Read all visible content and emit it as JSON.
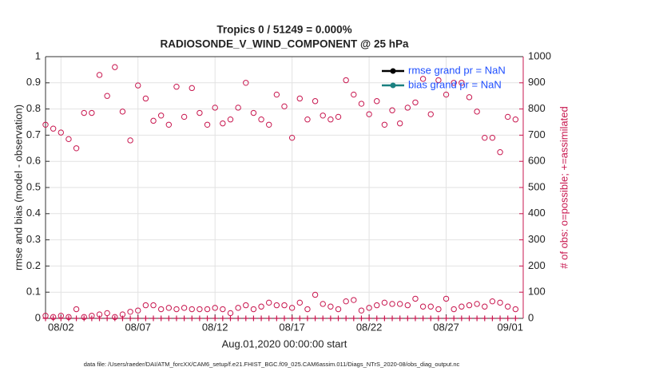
{
  "chart_data": {
    "type": "scatter",
    "title": "Tropics 0 / 51249 = 0.000%",
    "subtitle": "RADIOSONDE_V_WIND_COMPONENT @ 25 hPa",
    "x_label": "Aug.01,2020 00:00:00 start",
    "y_label": "rmse and bias (model - observation)",
    "y2_label": "# of obs: o=possible; +=assimilated",
    "footer": "data file: /Users/raeder/DAI/ATM_forcXX/CAM6_setup/f.e21.FHIST_BGC.f09_025.CAM6assim.011/Diags_NTrS_2020-08/obs_diag_output.nc",
    "xlim": [
      1,
      32
    ],
    "xticks": [
      {
        "value": 2,
        "label": "08/02"
      },
      {
        "value": 7,
        "label": "08/07"
      },
      {
        "value": 12,
        "label": "08/12"
      },
      {
        "value": 17,
        "label": "08/17"
      },
      {
        "value": 22,
        "label": "08/22"
      },
      {
        "value": 27,
        "label": "08/27"
      },
      {
        "value": 32,
        "label": "09/01"
      }
    ],
    "ylim": [
      0,
      1
    ],
    "yticks": [
      0,
      0.1,
      0.2,
      0.3,
      0.4,
      0.5,
      0.6,
      0.7,
      0.8,
      0.9,
      1
    ],
    "y2lim": [
      0,
      1000
    ],
    "y2ticks": [
      0,
      100,
      200,
      300,
      400,
      500,
      600,
      700,
      800,
      900,
      1000
    ],
    "y2_color": "#c8174f",
    "grid": true,
    "x": [
      1,
      1.5,
      2,
      2.5,
      3,
      3.5,
      4,
      4.5,
      5,
      5.5,
      6,
      6.5,
      7,
      7.5,
      8,
      8.5,
      9,
      9.5,
      10,
      10.5,
      11,
      11.5,
      12,
      12.5,
      13,
      13.5,
      14,
      14.5,
      15,
      15.5,
      16,
      16.5,
      17,
      17.5,
      18,
      18.5,
      19,
      19.5,
      20,
      20.5,
      21,
      21.5,
      22,
      22.5,
      23,
      23.5,
      24,
      24.5,
      25,
      25.5,
      26,
      26.5,
      27,
      27.5,
      28,
      28.5,
      29,
      29.5,
      30,
      30.5,
      31,
      31.5
    ],
    "series": [
      {
        "color": "#c8174f",
        "marker": "circle",
        "axis": "y2",
        "values": [
          740,
          725,
          710,
          685,
          650,
          785,
          785,
          930,
          850,
          960,
          790,
          680,
          890,
          840,
          755,
          775,
          740,
          885,
          770,
          880,
          785,
          740,
          805,
          745,
          760,
          805,
          900,
          785,
          760,
          740,
          855,
          810,
          690,
          840,
          760,
          830,
          775,
          760,
          770,
          910,
          855,
          820,
          780,
          830,
          740,
          795,
          745,
          805,
          825,
          915,
          780,
          910,
          855,
          900,
          900,
          845,
          790,
          690,
          690,
          635,
          770,
          760
        ]
      },
      {
        "color": "#c8174f",
        "marker": "circle",
        "axis": "y2",
        "values": [
          10,
          5,
          10,
          5,
          35,
          5,
          10,
          15,
          20,
          5,
          15,
          25,
          30,
          50,
          50,
          35,
          40,
          35,
          40,
          35,
          35,
          35,
          40,
          35,
          20,
          40,
          50,
          35,
          45,
          60,
          50,
          50,
          40,
          60,
          35,
          90,
          55,
          45,
          35,
          65,
          70,
          30,
          40,
          50,
          60,
          55,
          55,
          50,
          75,
          45,
          45,
          35,
          75,
          35,
          45,
          50,
          55,
          45,
          65,
          60,
          45,
          35
        ]
      },
      {
        "color": "#c8174f",
        "marker": "plus",
        "axis": "y2",
        "values": [
          0,
          0,
          0,
          0,
          0,
          0,
          0,
          0,
          0,
          0,
          0,
          0,
          0,
          0,
          0,
          0,
          0,
          0,
          0,
          0,
          0,
          0,
          0,
          0,
          0,
          0,
          0,
          0,
          0,
          0,
          0,
          0,
          0,
          0,
          0,
          0,
          0,
          0,
          0,
          0,
          0,
          0,
          0,
          0,
          0,
          0,
          0,
          0,
          0,
          0,
          0,
          0,
          0,
          0,
          0,
          0,
          0,
          0,
          0,
          0,
          0,
          0
        ]
      }
    ],
    "legend": [
      {
        "name": "rmse grand pr = NaN",
        "color": "#000000"
      },
      {
        "name": "bias grand pr = NaN",
        "color": "#1a8080"
      }
    ],
    "legend_position": "upper right"
  }
}
